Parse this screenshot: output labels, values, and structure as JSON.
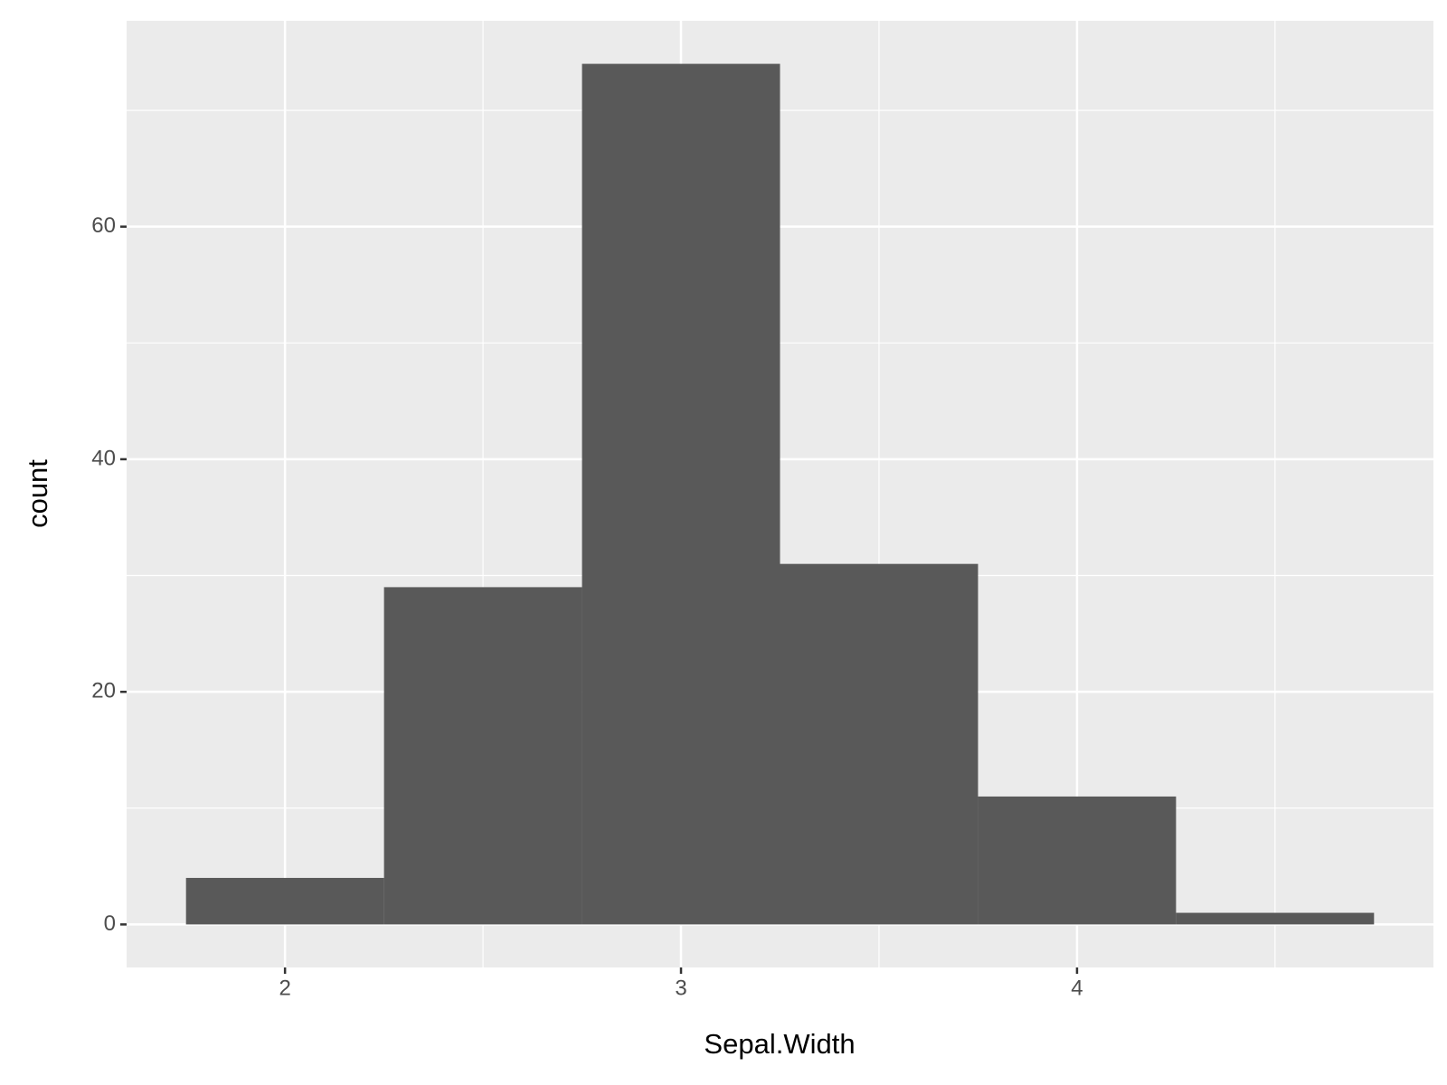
{
  "chart_data": {
    "type": "histogram",
    "xlabel": "Sepal.Width",
    "ylabel": "count",
    "bins": [
      1.75,
      2.25,
      2.75,
      3.25,
      3.75,
      4.25,
      4.75
    ],
    "values": [
      4,
      29,
      74,
      31,
      11,
      1
    ],
    "color": "#595959",
    "xlim": [
      1.6,
      4.9
    ],
    "xticks": [
      2,
      3,
      4
    ],
    "xminor": [
      2.5,
      3.5,
      4.5
    ],
    "ylim": [
      -3.7,
      77.7
    ],
    "yticks": [
      0,
      20,
      40,
      60
    ],
    "yminor": [
      10,
      30,
      50,
      70
    ],
    "grid": true
  }
}
